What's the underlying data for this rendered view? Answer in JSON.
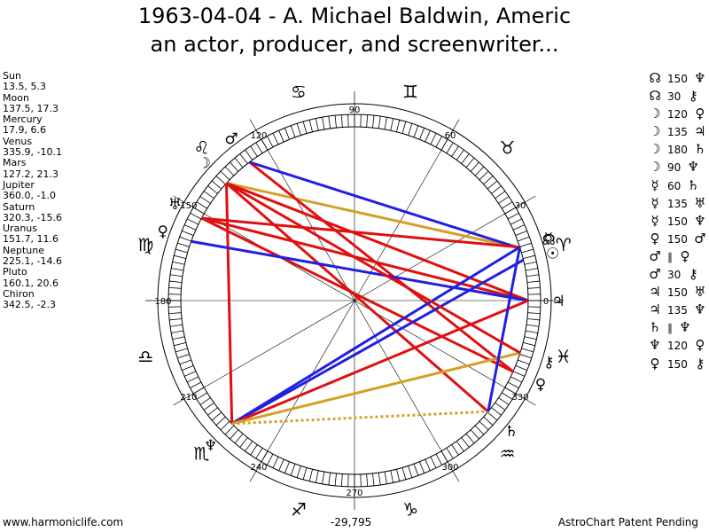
{
  "title_line1": "1963-04-04 - A. Michael Baldwin, Americ",
  "title_line2": "an actor, producer, and screenwriter...",
  "positions": [
    {
      "name": "Sun",
      "value": "13.5, 5.3"
    },
    {
      "name": "Moon",
      "value": "137.5, 17.3"
    },
    {
      "name": "Mercury",
      "value": "17.9, 6.6"
    },
    {
      "name": "Venus",
      "value": "335.9, -10.1"
    },
    {
      "name": "Mars",
      "value": "127.2, 21.3"
    },
    {
      "name": "Jupiter",
      "value": "360.0, -1.0"
    },
    {
      "name": "Saturn",
      "value": "320.3, -15.6"
    },
    {
      "name": "Uranus",
      "value": "151.7, 11.6"
    },
    {
      "name": "Neptune",
      "value": "225.1, -14.6"
    },
    {
      "name": "Pluto",
      "value": "160.1, 20.6"
    },
    {
      "name": "Chiron",
      "value": "342.5, -2.3"
    }
  ],
  "aspects": [
    {
      "p1": "☊",
      "angle": "150",
      "p2": "♆"
    },
    {
      "p1": "☊",
      "angle": "30",
      "p2": "⚷"
    },
    {
      "p1": "☽",
      "angle": "120",
      "p2": "♀"
    },
    {
      "p1": "☽",
      "angle": "135",
      "p2": "♃"
    },
    {
      "p1": "☽",
      "angle": "180",
      "p2": "♄"
    },
    {
      "p1": "☽",
      "angle": "90",
      "p2": "♆"
    },
    {
      "p1": "☿",
      "angle": "60",
      "p2": "♄"
    },
    {
      "p1": "☿",
      "angle": "135",
      "p2": "♅"
    },
    {
      "p1": "☿",
      "angle": "150",
      "p2": "♆"
    },
    {
      "p1": "♀",
      "angle": "150",
      "p2": "♂"
    },
    {
      "p1": "♂",
      "angle": "∥",
      "p2": "♀"
    },
    {
      "p1": "♂",
      "angle": "30",
      "p2": "⚷"
    },
    {
      "p1": "♃",
      "angle": "150",
      "p2": "♅"
    },
    {
      "p1": "♃",
      "angle": "135",
      "p2": "♆"
    },
    {
      "p1": "♄",
      "angle": "∥",
      "p2": "♆"
    },
    {
      "p1": "♆",
      "angle": "120",
      "p2": "♀"
    },
    {
      "p1": "♀",
      "angle": "150",
      "p2": "⚷"
    }
  ],
  "footer_left": "www.harmoniclife.com",
  "footer_center": "-29,795",
  "footer_right": "AstroChart Patent Pending",
  "wheel": {
    "degree_labels": [
      {
        "deg": 0,
        "label": "0"
      },
      {
        "deg": 30,
        "label": "30"
      },
      {
        "deg": 60,
        "label": "60"
      },
      {
        "deg": 90,
        "label": "90"
      },
      {
        "deg": 120,
        "label": "120"
      },
      {
        "deg": 150,
        "label": "150"
      },
      {
        "deg": 180,
        "label": "180"
      },
      {
        "deg": 210,
        "label": "210"
      },
      {
        "deg": 240,
        "label": "240"
      },
      {
        "deg": 270,
        "label": "270"
      },
      {
        "deg": 300,
        "label": "300"
      },
      {
        "deg": 330,
        "label": "330"
      }
    ],
    "signs": [
      {
        "deg": 15,
        "glyph": "♈"
      },
      {
        "deg": 45,
        "glyph": "♉"
      },
      {
        "deg": 75,
        "glyph": "♊"
      },
      {
        "deg": 105,
        "glyph": "♋"
      },
      {
        "deg": 135,
        "glyph": "♌"
      },
      {
        "deg": 165,
        "glyph": "♍"
      },
      {
        "deg": 195,
        "glyph": "♎"
      },
      {
        "deg": 225,
        "glyph": "♏"
      },
      {
        "deg": 255,
        "glyph": "♐"
      },
      {
        "deg": 285,
        "glyph": "♑"
      },
      {
        "deg": 315,
        "glyph": "♒"
      },
      {
        "deg": 345,
        "glyph": "♓"
      }
    ],
    "planets": [
      {
        "id": "sun",
        "deg": 13.5,
        "glyph": "☉"
      },
      {
        "id": "moon",
        "deg": 137.5,
        "glyph": "☽"
      },
      {
        "id": "mercury",
        "deg": 17.9,
        "glyph": "☿"
      },
      {
        "id": "venus",
        "deg": 335.9,
        "glyph": "♀"
      },
      {
        "id": "mars",
        "deg": 127.2,
        "glyph": "♂"
      },
      {
        "id": "jupiter",
        "deg": 360.0,
        "glyph": "♃"
      },
      {
        "id": "saturn",
        "deg": 320.3,
        "glyph": "♄"
      },
      {
        "id": "uranus",
        "deg": 151.7,
        "glyph": "♅"
      },
      {
        "id": "neptune",
        "deg": 225.1,
        "glyph": "♆"
      },
      {
        "id": "pluto",
        "deg": 160.1,
        "glyph": "♀"
      },
      {
        "id": "chiron",
        "deg": 342.5,
        "glyph": "⚷"
      },
      {
        "id": "node",
        "deg": 17.5,
        "glyph": "☊"
      }
    ],
    "aspect_lines": [
      {
        "a": 137.5,
        "b": 320.3,
        "color": "#e01010",
        "style": "solid"
      },
      {
        "a": 137.5,
        "b": 225.1,
        "color": "#e01010",
        "style": "solid"
      },
      {
        "a": 137.5,
        "b": 17.5,
        "color": "#d4a028",
        "style": "solid"
      },
      {
        "a": 137.5,
        "b": 360.0,
        "color": "#e01010",
        "style": "solid"
      },
      {
        "a": 127.2,
        "b": 335.9,
        "color": "#e01010",
        "style": "solid"
      },
      {
        "a": 127.2,
        "b": 17.5,
        "color": "#2020e0",
        "style": "solid"
      },
      {
        "a": 151.7,
        "b": 360.0,
        "color": "#e01010",
        "style": "solid"
      },
      {
        "a": 151.7,
        "b": 17.9,
        "color": "#e01010",
        "style": "solid"
      },
      {
        "a": 151.7,
        "b": 335.9,
        "color": "#e01010",
        "style": "solid"
      },
      {
        "a": 160.1,
        "b": 360.0,
        "color": "#2020e0",
        "style": "solid"
      },
      {
        "a": 225.1,
        "b": 17.9,
        "color": "#2020e0",
        "style": "solid"
      },
      {
        "a": 225.1,
        "b": 13.5,
        "color": "#2020e0",
        "style": "solid"
      },
      {
        "a": 225.1,
        "b": 360.0,
        "color": "#e01010",
        "style": "solid"
      },
      {
        "a": 225.1,
        "b": 342.5,
        "color": "#d4a028",
        "style": "solid"
      },
      {
        "a": 225.1,
        "b": 320.3,
        "color": "#d4a028",
        "style": "dotted"
      },
      {
        "a": 320.3,
        "b": 17.9,
        "color": "#2020e0",
        "style": "solid"
      },
      {
        "a": 342.5,
        "b": 137.5,
        "color": "#e01010",
        "style": "solid"
      }
    ]
  }
}
